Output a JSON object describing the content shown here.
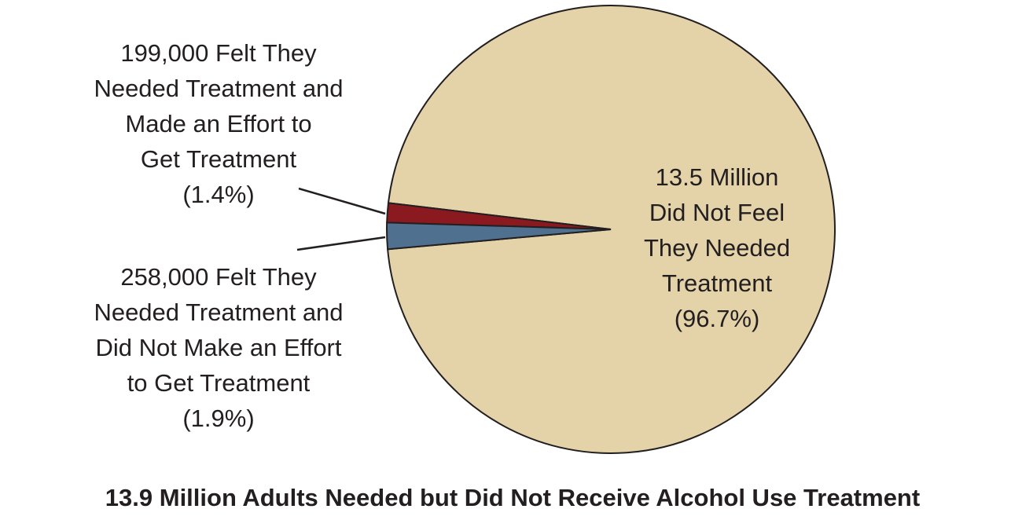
{
  "chart_data": {
    "type": "pie",
    "title": "13.9 Million Adults Needed but Did Not Receive Alcohol Use Treatment",
    "categories": [
      [
        "13.5 Million",
        "Did Not Feel",
        "They Needed",
        "Treatment"
      ],
      [
        "199,000 Felt They",
        "Needed Treatment and",
        "Made an Effort to",
        "Get Treatment"
      ],
      [
        "258,000 Felt They",
        "Needed Treatment and",
        "Did Not Make an Effort",
        "to Get Treatment"
      ]
    ],
    "values": [
      96.7,
      1.4,
      1.9
    ],
    "value_labels": [
      "(96.7%)",
      "(1.4%)",
      "(1.9%)"
    ],
    "colors": [
      "#e4d3a9",
      "#8a1a1f",
      "#4f718f"
    ]
  }
}
